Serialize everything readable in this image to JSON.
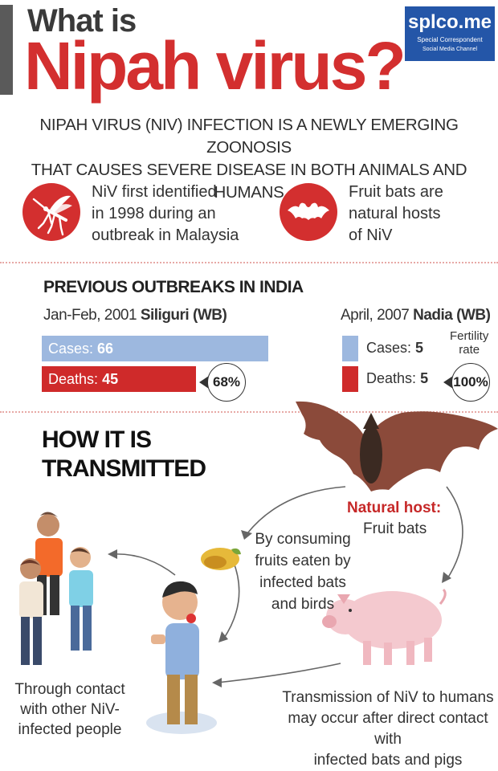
{
  "header": {
    "title_small": "What is",
    "title_main": "Nipah virus?"
  },
  "logo": {
    "name": "splco.me",
    "tagline1": "Special Correspondent",
    "tagline2": "Social Media Channel",
    "color": "#2456a8"
  },
  "intro": {
    "line1": "NIPAH VIRUS (NIV) INFECTION IS A NEWLY EMERGING ZOONOSIS",
    "line2": "THAT CAUSES SEVERE DISEASE IN BOTH ANIMALS AND HUMANS"
  },
  "facts": [
    {
      "icon": "mosquito-icon",
      "lines": [
        "NiV first identified",
        "in 1998 during an",
        "outbreak in Malaysia"
      ]
    },
    {
      "icon": "bat-icon",
      "lines": [
        "Fruit bats are",
        "natural hosts",
        "of NiV"
      ]
    }
  ],
  "outbreaks": {
    "title": "PREVIOUS OUTBREAKS IN INDIA",
    "first": {
      "date": "Jan-Feb, 2001",
      "place": "Siliguri (WB)",
      "cases_label": "Cases:",
      "cases": "66",
      "deaths_label": "Deaths:",
      "deaths": "45",
      "fatality": "68%"
    },
    "second": {
      "date": "April, 2007",
      "place": "Nadia (WB)",
      "cases_label": "Cases:",
      "cases": "5",
      "deaths_label": "Deaths:",
      "deaths": "5",
      "fatality": "100%",
      "rate_line1": "Fertility",
      "rate_line2": "rate"
    }
  },
  "transmission": {
    "title_line1": "HOW IT IS",
    "title_line2": "TRANSMITTED",
    "natural_host_label": "Natural host:",
    "natural_host_value": "Fruit bats",
    "fruit_lines": [
      "By consuming",
      "fruits eaten by",
      "infected bats",
      "and birds"
    ],
    "contact_lines": [
      "Through contact",
      "with other NiV-",
      "infected people"
    ],
    "transmission_lines": [
      "Transmission of NiV to humans",
      "may occur after direct contact with",
      "infected bats and pigs"
    ]
  },
  "colors": {
    "accent_red": "#d32f2f",
    "cases_blue": "#9db8df",
    "deaths_red": "#cf2a2a"
  }
}
